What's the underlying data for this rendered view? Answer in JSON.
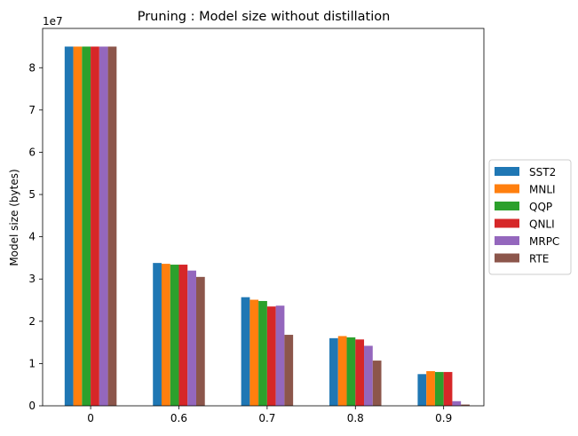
{
  "chart_data": {
    "type": "bar",
    "title": "Pruning : Model size without distillation",
    "xlabel": "",
    "ylabel": "Model size (bytes)",
    "offset_text": "1e7",
    "scale": 10000000,
    "categories": [
      "0",
      "0.6",
      "0.7",
      "0.8",
      "0.9"
    ],
    "ylim": [
      0,
      8.93
    ],
    "yticks": [
      0,
      1,
      2,
      3,
      4,
      5,
      6,
      7,
      8
    ],
    "grid": false,
    "legend_position": "center-right-outside",
    "series": [
      {
        "name": "SST2",
        "color": "#1f77b4",
        "values": [
          8.5,
          3.38,
          2.57,
          1.6,
          0.75
        ]
      },
      {
        "name": "MNLI",
        "color": "#ff7f0e",
        "values": [
          8.5,
          3.36,
          2.51,
          1.65,
          0.82
        ]
      },
      {
        "name": "QQP",
        "color": "#2ca02c",
        "values": [
          8.5,
          3.34,
          2.48,
          1.62,
          0.8
        ]
      },
      {
        "name": "QNLI",
        "color": "#d62728",
        "values": [
          8.5,
          3.34,
          2.35,
          1.57,
          0.8
        ]
      },
      {
        "name": "MRPC",
        "color": "#9467bd",
        "values": [
          8.5,
          3.2,
          2.37,
          1.42,
          0.11
        ]
      },
      {
        "name": "RTE",
        "color": "#8c564b",
        "values": [
          8.5,
          3.05,
          1.68,
          1.07,
          0.03
        ]
      }
    ]
  }
}
